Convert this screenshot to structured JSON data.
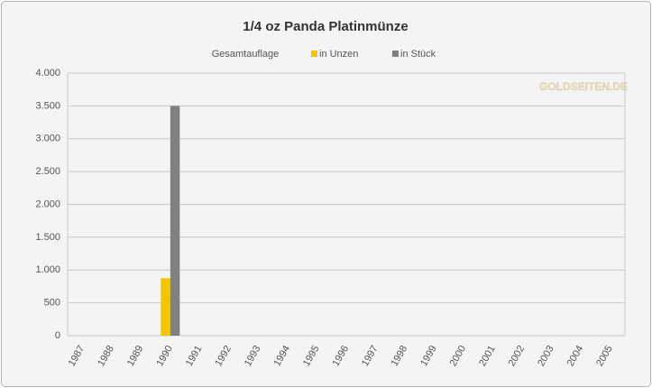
{
  "chart_data": {
    "type": "bar",
    "title": "1/4 oz Panda Platinmünze",
    "legend_title": "Gesamtauflage",
    "watermark": "GOLDSEITEN.DE",
    "categories": [
      "1987",
      "1988",
      "1989",
      "1990",
      "1991",
      "1992",
      "1993",
      "1994",
      "1995",
      "1996",
      "1997",
      "1998",
      "1999",
      "2000",
      "2001",
      "2002",
      "2003",
      "2004",
      "2005"
    ],
    "series": [
      {
        "name": "in Unzen",
        "color": "#f5c400",
        "values": [
          0,
          0,
          0,
          875,
          0,
          0,
          0,
          0,
          0,
          0,
          0,
          0,
          0,
          0,
          0,
          0,
          0,
          0,
          0
        ]
      },
      {
        "name": "in Stück",
        "color": "#808080",
        "values": [
          0,
          0,
          0,
          3500,
          0,
          0,
          0,
          0,
          0,
          0,
          0,
          0,
          0,
          0,
          0,
          0,
          0,
          0,
          0
        ]
      }
    ],
    "ylim": [
      0,
      4000
    ],
    "yticks": [
      0,
      500,
      {
        "value": 1000,
        "label": "1.000"
      },
      {
        "value": 1500,
        "label": "1.500"
      },
      {
        "value": 2000,
        "label": "2.000"
      },
      {
        "value": 2500,
        "label": "2.500"
      },
      {
        "value": 3000,
        "label": "3.000"
      },
      {
        "value": 3500,
        "label": "3.500"
      },
      {
        "value": 4000,
        "label": "4.000"
      }
    ],
    "grid": true,
    "legend": "top"
  }
}
